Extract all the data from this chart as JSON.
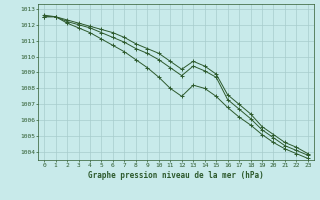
{
  "title": "Graphe pression niveau de la mer (hPa)",
  "background_color": "#c8eaea",
  "line_color": "#2d5a2d",
  "grid_color": "#a8cccc",
  "ylim": [
    1003.5,
    1013.3
  ],
  "xlim": [
    -0.5,
    23.5
  ],
  "yticks": [
    1004,
    1005,
    1006,
    1007,
    1008,
    1009,
    1010,
    1011,
    1012,
    1013
  ],
  "xticks": [
    0,
    1,
    2,
    3,
    4,
    5,
    6,
    7,
    8,
    9,
    10,
    11,
    12,
    13,
    14,
    15,
    16,
    17,
    18,
    19,
    20,
    21,
    22,
    23
  ],
  "series": [
    [
      1012.5,
      1012.5,
      1012.2,
      1012.0,
      1011.8,
      1011.5,
      1011.2,
      1010.9,
      1010.5,
      1010.2,
      1009.8,
      1009.3,
      1008.8,
      1009.4,
      1009.1,
      1008.7,
      1007.3,
      1006.7,
      1006.1,
      1005.4,
      1004.9,
      1004.4,
      1004.1,
      1003.8
    ],
    [
      1012.5,
      1012.5,
      1012.1,
      1011.8,
      1011.5,
      1011.1,
      1010.7,
      1010.3,
      1009.8,
      1009.3,
      1008.7,
      1008.0,
      1007.5,
      1008.2,
      1008.0,
      1007.5,
      1006.8,
      1006.2,
      1005.7,
      1005.1,
      1004.6,
      1004.2,
      1003.9,
      1003.6
    ],
    [
      1012.6,
      1012.5,
      1012.3,
      1012.1,
      1011.9,
      1011.7,
      1011.5,
      1011.2,
      1010.8,
      1010.5,
      1010.2,
      1009.7,
      1009.2,
      1009.7,
      1009.4,
      1008.9,
      1007.6,
      1007.0,
      1006.4,
      1005.6,
      1005.1,
      1004.6,
      1004.3,
      1003.9
    ]
  ],
  "title_fontsize": 5.5,
  "tick_fontsize": 4.5
}
